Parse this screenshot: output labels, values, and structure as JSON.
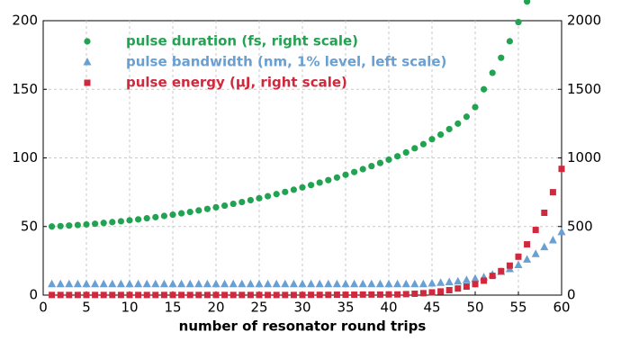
{
  "chart_data": {
    "type": "scatter",
    "xlabel": "number of resonator round trips",
    "x": [
      1,
      2,
      3,
      4,
      5,
      6,
      7,
      8,
      9,
      10,
      11,
      12,
      13,
      14,
      15,
      16,
      17,
      18,
      19,
      20,
      21,
      22,
      23,
      24,
      25,
      26,
      27,
      28,
      29,
      30,
      31,
      32,
      33,
      34,
      35,
      36,
      37,
      38,
      39,
      40,
      41,
      42,
      43,
      44,
      45,
      46,
      47,
      48,
      49,
      50,
      51,
      52,
      53,
      54,
      55,
      56,
      57,
      58,
      59,
      60
    ],
    "xlim": [
      0,
      60
    ],
    "xticks": [
      0,
      5,
      10,
      15,
      20,
      25,
      30,
      35,
      40,
      45,
      50,
      55,
      60
    ],
    "ylim": [
      0,
      200
    ],
    "yticks": [
      0,
      50,
      100,
      150,
      200
    ],
    "y2lim": [
      0,
      2000
    ],
    "y2ticks": [
      0,
      500,
      1000,
      1500,
      2000
    ],
    "grid": true,
    "legend": "upper left",
    "series": [
      {
        "name": "pulse duration (fs, right scale)",
        "color": "#22a352",
        "marker": "circle",
        "axis": "y2",
        "values": [
          500,
          503,
          507,
          511,
          515,
          520,
          526,
          532,
          538,
          545,
          552,
          560,
          568,
          577,
          586,
          596,
          606,
          617,
          628,
          640,
          652,
          665,
          678,
          692,
          706,
          721,
          736,
          752,
          768,
          785,
          802,
          820,
          838,
          857,
          877,
          897,
          918,
          940,
          963,
          987,
          1012,
          1040,
          1070,
          1100,
          1136,
          1170,
          1210,
          1250,
          1300,
          1370,
          1500,
          1620,
          1730,
          1850,
          1990,
          2140,
          null,
          null,
          null,
          null
        ]
      },
      {
        "name": "pulse bandwidth (nm, 1% level, left scale)",
        "color": "#6a9fd2",
        "marker": "triangle",
        "values": [
          8,
          8,
          8,
          8,
          8,
          8,
          8,
          8,
          8,
          8,
          8,
          8,
          8,
          8,
          8,
          8,
          8,
          8,
          8,
          8,
          8,
          8,
          8,
          8,
          8,
          8,
          8,
          8,
          8,
          8,
          8,
          8,
          8,
          8,
          8,
          8,
          8,
          8,
          8,
          8,
          8,
          8,
          8,
          8,
          8.5,
          9,
          9.5,
          10,
          11,
          12,
          13,
          15,
          17,
          19,
          22,
          26,
          30,
          35,
          40,
          46
        ]
      },
      {
        "name": "pulse energy (μJ, right scale)",
        "color": "#d0283c",
        "marker": "square",
        "axis": "y2",
        "values": [
          1,
          1,
          1,
          1,
          1,
          1,
          1,
          1,
          1,
          1,
          1,
          1,
          1,
          1,
          1,
          1,
          1,
          1,
          1,
          1,
          1,
          1,
          1,
          1,
          1,
          1,
          1,
          1,
          1,
          1,
          2,
          2,
          2,
          3,
          3,
          3,
          4,
          4,
          4,
          5,
          5,
          7,
          10,
          14,
          20,
          27,
          36,
          48,
          62,
          80,
          105,
          140,
          175,
          215,
          280,
          370,
          475,
          600,
          750,
          920
        ]
      }
    ]
  }
}
